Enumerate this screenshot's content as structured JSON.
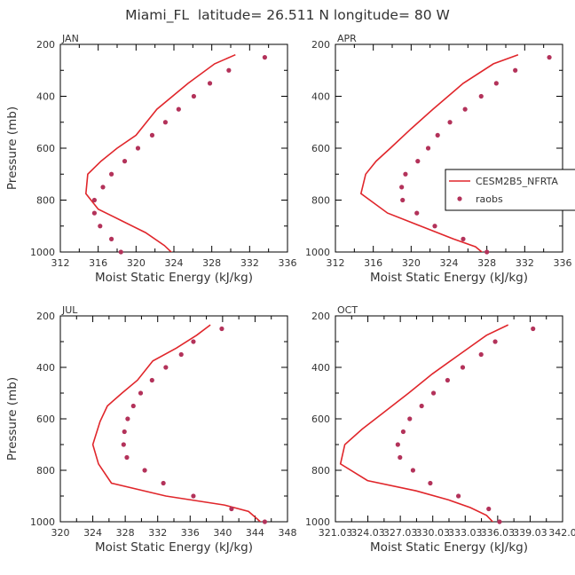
{
  "title": "Miami_FL  latitude= 26.511 N longitude= 80 W",
  "colors": {
    "model": "#e0262b",
    "obs": "#b3325a",
    "axis": "#000000",
    "text": "#333333"
  },
  "legend": {
    "model_label": "CESM2B5_NFRTA",
    "obs_label": "raobs"
  },
  "chart_data": [
    {
      "type": "line",
      "panel": "JAN",
      "xlabel": "Moist Static Energy (kJ/kg)",
      "ylabel": "Pressure (mb)",
      "xlim": [
        312,
        336
      ],
      "xticks": [
        312,
        316,
        320,
        324,
        328,
        332,
        336
      ],
      "xtick_labels": [
        "312",
        "316",
        "320",
        "324",
        "328",
        "332",
        "336"
      ],
      "ylim": [
        1000,
        200
      ],
      "yticks": [
        200,
        400,
        600,
        800,
        1000
      ],
      "legend": false,
      "series": [
        {
          "name": "CESM2B5_NFRTA",
          "kind": "line",
          "x": [
            330.5,
            328.3,
            325.5,
            322.2,
            320.0,
            318.0,
            316.3,
            314.9,
            314.7,
            316.0,
            318.5,
            321.0,
            323.0,
            324.0
          ],
          "y": [
            240,
            275,
            350,
            450,
            550,
            600,
            650,
            700,
            775,
            835,
            880,
            925,
            975,
            1010
          ]
        },
        {
          "name": "raobs",
          "kind": "scatter",
          "x": [
            333.6,
            329.8,
            327.8,
            326.1,
            324.5,
            323.1,
            321.7,
            320.2,
            318.8,
            317.4,
            316.5,
            315.6,
            315.6,
            316.2,
            317.4,
            318.4
          ],
          "y": [
            250,
            300,
            350,
            400,
            450,
            500,
            550,
            600,
            650,
            700,
            750,
            800,
            850,
            900,
            950,
            1000
          ]
        }
      ]
    },
    {
      "type": "line",
      "panel": "APR",
      "xlabel": "Moist Static Energy (kJ/kg)",
      "ylabel": "",
      "xlim": [
        312,
        336
      ],
      "xticks": [
        312,
        316,
        320,
        324,
        328,
        332,
        336
      ],
      "xtick_labels": [
        "312",
        "316",
        "320",
        "324",
        "328",
        "332",
        "336"
      ],
      "ylim": [
        1000,
        200
      ],
      "yticks": [
        200,
        400,
        600,
        800,
        1000
      ],
      "legend": true,
      "series": [
        {
          "name": "CESM2B5_NFRTA",
          "kind": "line",
          "x": [
            331.3,
            328.7,
            325.5,
            322.3,
            320.0,
            317.8,
            316.3,
            315.2,
            314.7,
            317.5,
            321.0,
            324.5,
            326.8,
            327.8
          ],
          "y": [
            240,
            275,
            350,
            450,
            525,
            600,
            650,
            700,
            775,
            850,
            900,
            950,
            980,
            1010
          ]
        },
        {
          "name": "raobs",
          "kind": "scatter",
          "x": [
            334.6,
            331.0,
            329.0,
            327.4,
            325.7,
            324.1,
            322.8,
            321.8,
            320.7,
            319.4,
            319.0,
            319.1,
            320.6,
            322.5,
            325.5,
            328.0
          ],
          "y": [
            250,
            300,
            350,
            400,
            450,
            500,
            550,
            600,
            650,
            700,
            750,
            800,
            850,
            900,
            950,
            1000
          ]
        }
      ]
    },
    {
      "type": "line",
      "panel": "JUL",
      "xlabel": "Moist Static Energy (kJ/kg)",
      "ylabel": "Pressure (mb)",
      "xlim": [
        320,
        348
      ],
      "xticks": [
        320,
        324,
        328,
        332,
        336,
        340,
        344,
        348
      ],
      "xtick_labels": [
        "320",
        "324",
        "328",
        "332",
        "336",
        "340",
        "344",
        "348"
      ],
      "ylim": [
        1000,
        200
      ],
      "yticks": [
        200,
        400,
        600,
        800,
        1000
      ],
      "legend": false,
      "series": [
        {
          "name": "CESM2B5_NFRTA",
          "kind": "line",
          "x": [
            338.5,
            336.8,
            334.3,
            331.4,
            329.5,
            327.6,
            325.8,
            324.9,
            324.0,
            324.7,
            326.3,
            333.0,
            340.2,
            343.2,
            344.3,
            345.0
          ],
          "y": [
            235,
            275,
            325,
            375,
            450,
            500,
            550,
            610,
            700,
            775,
            850,
            900,
            935,
            960,
            990,
            1010
          ]
        },
        {
          "name": "raobs",
          "kind": "scatter",
          "x": [
            339.9,
            336.4,
            334.9,
            333.0,
            331.3,
            329.9,
            329.0,
            328.3,
            327.9,
            327.8,
            328.2,
            330.4,
            332.7,
            336.4,
            341.1,
            345.2
          ],
          "y": [
            250,
            300,
            350,
            400,
            450,
            500,
            550,
            600,
            650,
            700,
            750,
            800,
            850,
            900,
            950,
            1000
          ]
        }
      ]
    },
    {
      "type": "line",
      "panel": "OCT",
      "xlabel": "Moist Static Energy (kJ/kg)",
      "ylabel": "",
      "xlim": [
        321.03,
        342.03
      ],
      "xticks": [
        321.03,
        324.03,
        327.03,
        330.03,
        333.03,
        336.03,
        339.03,
        342.03
      ],
      "xtick_labels": [
        "321.03",
        "324.03",
        "327.03",
        "330.03",
        "333.03",
        "336.03",
        "339.03",
        "342.0"
      ],
      "ylim": [
        1000,
        200
      ],
      "yticks": [
        200,
        400,
        600,
        800,
        1000
      ],
      "legend": false,
      "series": [
        {
          "name": "CESM2B5_NFRTA",
          "kind": "line",
          "x": [
            337.0,
            335.0,
            332.5,
            330.0,
            327.8,
            325.5,
            323.5,
            321.9,
            321.5,
            324.0,
            328.5,
            331.5,
            333.5,
            335.0,
            335.8
          ],
          "y": [
            235,
            275,
            350,
            425,
            500,
            575,
            640,
            700,
            775,
            840,
            880,
            915,
            945,
            975,
            1010
          ]
        },
        {
          "name": "raobs",
          "kind": "scatter",
          "x": [
            339.3,
            335.8,
            334.5,
            332.8,
            331.4,
            330.1,
            329.0,
            327.9,
            327.3,
            326.8,
            327.0,
            328.2,
            329.8,
            332.4,
            335.2,
            336.2
          ],
          "y": [
            250,
            300,
            350,
            400,
            450,
            500,
            550,
            600,
            650,
            700,
            750,
            800,
            850,
            900,
            950,
            1000
          ]
        }
      ]
    }
  ]
}
